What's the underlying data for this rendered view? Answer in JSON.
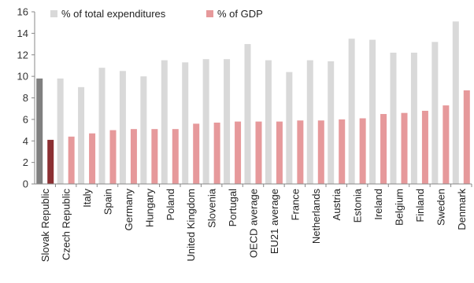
{
  "chart_data": {
    "type": "bar",
    "categories": [
      "Slovak Republic",
      "Czech Republic",
      "Italy",
      "Spain",
      "Germany",
      "Hungary",
      "Poland",
      "United Kingdom",
      "Slovenia",
      "Portugal",
      "OECD average",
      "EU21 average",
      "France",
      "Netherlands",
      "Austria",
      "Estonia",
      "Ireland",
      "Belgium",
      "Finland",
      "Sweden",
      "Denmark"
    ],
    "series": [
      {
        "name": "% of total expenditures",
        "color": "#d9d9d9",
        "highlight_color": "#808080",
        "values": [
          9.8,
          9.8,
          9.0,
          10.8,
          10.5,
          10.0,
          11.5,
          11.3,
          11.6,
          11.6,
          13.0,
          11.5,
          10.4,
          11.5,
          11.4,
          13.5,
          13.4,
          12.2,
          12.2,
          13.2,
          15.1
        ]
      },
      {
        "name": "% of GDP",
        "color": "#e6999b",
        "highlight_color": "#8b2f32",
        "values": [
          4.1,
          4.4,
          4.7,
          5.0,
          5.1,
          5.1,
          5.1,
          5.6,
          5.7,
          5.8,
          5.8,
          5.8,
          5.9,
          5.9,
          6.0,
          6.1,
          6.5,
          6.6,
          6.8,
          7.3,
          8.7
        ]
      }
    ],
    "highlight_index": 0,
    "ylim": [
      0,
      16
    ],
    "yticks": [
      0,
      2,
      4,
      6,
      8,
      10,
      12,
      14,
      16
    ],
    "xlabel": "",
    "ylabel": "",
    "title": "",
    "grid": false,
    "legend_position": "top-left"
  }
}
